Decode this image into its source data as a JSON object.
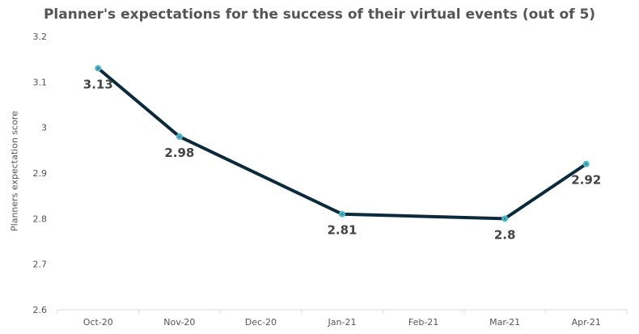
{
  "chart_data": {
    "type": "line",
    "title": "Planner's expectations for the success of their virtual events (out of 5)",
    "xlabel": "",
    "ylabel": "Planners  expectation score",
    "categories": [
      "Oct-20",
      "Nov-20",
      "Dec-20",
      "Jan-21",
      "Feb-21",
      "Mar-21",
      "Apr-21"
    ],
    "values": [
      3.13,
      2.98,
      null,
      2.81,
      null,
      2.8,
      2.92
    ],
    "data_labels": [
      "3.13",
      "2.98",
      "",
      "2.81",
      "",
      "2.8",
      "2.92"
    ],
    "ylim": [
      2.6,
      3.2
    ],
    "yticks": [
      "2.6",
      "2.7",
      "2.8",
      "2.9",
      "3",
      "3.1",
      "3.2"
    ],
    "grid": false,
    "legend": "none",
    "colors": {
      "line": "#0b2a3c",
      "marker": "#4dbfb8",
      "marker_center": "#4a6fd0",
      "text": "#555555"
    }
  }
}
